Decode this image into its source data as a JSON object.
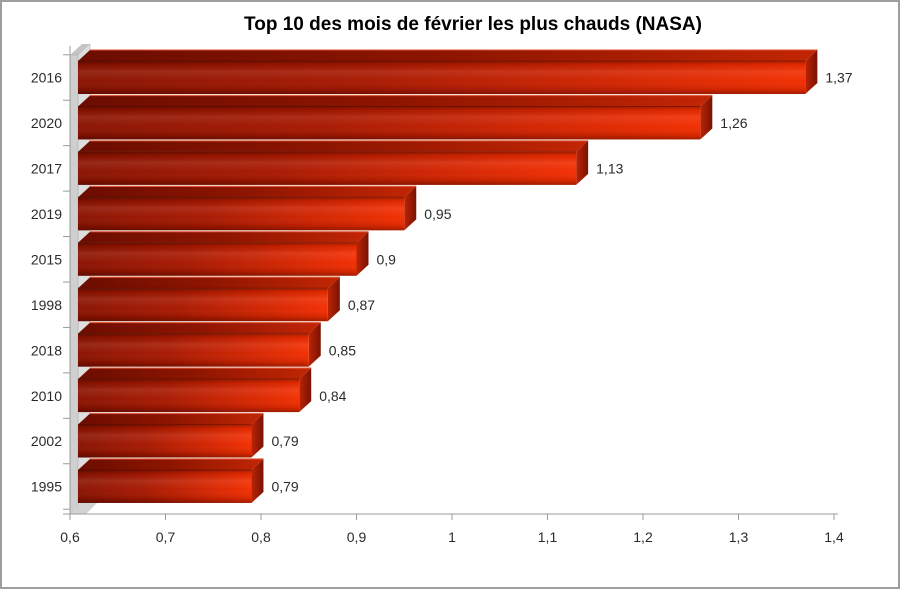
{
  "window": {
    "background": "#ffffff",
    "border_color": "#9e9e9e"
  },
  "chart_data": {
    "type": "bar",
    "orientation": "horizontal",
    "style": "3d",
    "title": "Top 10 des mois de février les plus chauds (NASA)",
    "categories": [
      "2016",
      "2020",
      "2017",
      "2019",
      "2015",
      "1998",
      "2018",
      "2010",
      "2002",
      "1995"
    ],
    "values": [
      1.37,
      1.26,
      1.13,
      0.95,
      0.9,
      0.87,
      0.85,
      0.84,
      0.79,
      0.79
    ],
    "value_labels": [
      "1,37",
      "1,26",
      "1,13",
      "0,95",
      "0,9",
      "0,87",
      "0,85",
      "0,84",
      "0,79",
      "0,79"
    ],
    "xlabel": "",
    "ylabel": "",
    "xlim": [
      0.6,
      1.4
    ],
    "x_tick_values": [
      0.6,
      0.7,
      0.8,
      0.9,
      1,
      1.1,
      1.2,
      1.3,
      1.4
    ],
    "x_tick_labels": [
      "0,6",
      "0,7",
      "0,8",
      "0,9",
      "1",
      "1,1",
      "1,2",
      "1,3",
      "1,4"
    ],
    "grid": "off",
    "legend": "none",
    "colors": {
      "bar_front_dark": "#8a1200",
      "bar_front_mid": "#a81800",
      "bar_front_light": "#d42400",
      "bar_front_bright": "#f22d00",
      "bar_top_dark": "#6b0d00",
      "bar_top_mid": "#8e1500",
      "bar_top_bright": "#c22604",
      "bar_cap_near": "#bc2405",
      "bar_cap_far": "#7a1203",
      "bar_edge_highlight": "#e0512d",
      "wall_front": "#cfcfcf",
      "wall_side": "#dedede",
      "wall_top": "#c4c4c4",
      "floor": "#d2d2d2",
      "axis": "#9b9b9b",
      "label": "#2b2b2b",
      "title": "#000000"
    }
  }
}
